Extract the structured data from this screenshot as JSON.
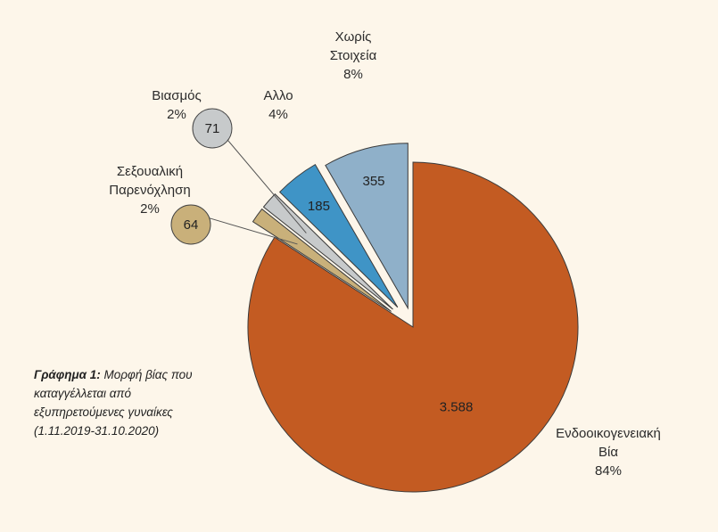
{
  "caption": {
    "bold": "Γράφημα 1:",
    "text": " Μορφή βίας που καταγγέλλεται από εξυπηρετούμενες γυναίκες (1.11.2019-31.10.2020)"
  },
  "chart_data": {
    "type": "pie",
    "slices": [
      {
        "name": [
          "Ενδοοικογενειακή",
          "Βία"
        ],
        "value_label": "3.588",
        "value": 3588,
        "percent": "84%",
        "color": "#c35b22"
      },
      {
        "name": [
          "Σεξουαλική",
          "Παρενόχληση"
        ],
        "value_label": "64",
        "value": 64,
        "percent": "2%",
        "color": "#c9b07a"
      },
      {
        "name": [
          "Βιασμός"
        ],
        "value_label": "71",
        "value": 71,
        "percent": "2%",
        "color": "#c7cacb"
      },
      {
        "name": [
          "Αλλο"
        ],
        "value_label": "185",
        "value": 185,
        "percent": "4%",
        "color": "#3f94c6"
      },
      {
        "name": [
          "Χωρίς",
          "Στοιχεία"
        ],
        "value_label": "355",
        "value": 355,
        "percent": "8%",
        "color": "#8fb0c9"
      }
    ]
  }
}
